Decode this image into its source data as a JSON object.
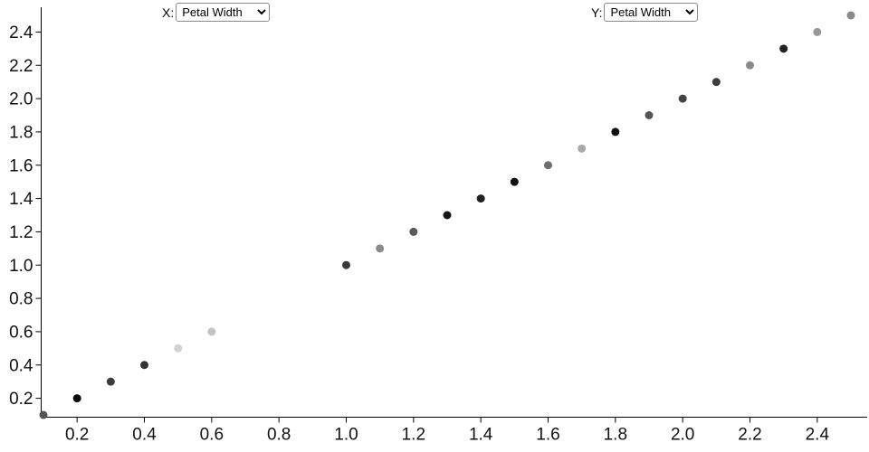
{
  "controls": {
    "x": {
      "label": "X:",
      "value": "Petal Width",
      "options": [
        "Petal Width"
      ]
    },
    "y": {
      "label": "Y:",
      "value": "Petal Width",
      "options": [
        "Petal Width"
      ]
    }
  },
  "chart_data": {
    "type": "scatter",
    "title": "",
    "xlabel": "",
    "ylabel": "",
    "xlim": [
      0.1,
      2.5
    ],
    "ylim": [
      0.1,
      2.5
    ],
    "grid": false,
    "legend": "none",
    "x_ticks": [
      0.2,
      0.4,
      0.6,
      0.8,
      1.0,
      1.2,
      1.4,
      1.6,
      1.8,
      2.0,
      2.2,
      2.4
    ],
    "y_ticks": [
      0.2,
      0.4,
      0.6,
      0.8,
      1.0,
      1.2,
      1.4,
      1.6,
      1.8,
      2.0,
      2.2,
      2.4
    ],
    "tick_format_decimals": 1,
    "axis_color": "#000000",
    "point_radius": 4.5,
    "points": [
      {
        "x": 0.1,
        "y": 0.1,
        "color": "#555555"
      },
      {
        "x": 0.2,
        "y": 0.2,
        "color": "#0a0a0a"
      },
      {
        "x": 0.3,
        "y": 0.3,
        "color": "#3d3d3d"
      },
      {
        "x": 0.4,
        "y": 0.4,
        "color": "#333333"
      },
      {
        "x": 0.5,
        "y": 0.5,
        "color": "#d2d2d2"
      },
      {
        "x": 0.6,
        "y": 0.6,
        "color": "#c4c4c4"
      },
      {
        "x": 1.0,
        "y": 1.0,
        "color": "#3a3a3a"
      },
      {
        "x": 1.1,
        "y": 1.1,
        "color": "#8a8a8a"
      },
      {
        "x": 1.2,
        "y": 1.2,
        "color": "#5a5a5a"
      },
      {
        "x": 1.3,
        "y": 1.3,
        "color": "#151515"
      },
      {
        "x": 1.4,
        "y": 1.4,
        "color": "#222222"
      },
      {
        "x": 1.5,
        "y": 1.5,
        "color": "#111111"
      },
      {
        "x": 1.6,
        "y": 1.6,
        "color": "#6e6e6e"
      },
      {
        "x": 1.7,
        "y": 1.7,
        "color": "#aaaaaa"
      },
      {
        "x": 1.8,
        "y": 1.8,
        "color": "#111111"
      },
      {
        "x": 1.9,
        "y": 1.9,
        "color": "#555555"
      },
      {
        "x": 2.0,
        "y": 2.0,
        "color": "#444444"
      },
      {
        "x": 2.1,
        "y": 2.1,
        "color": "#3c3c3c"
      },
      {
        "x": 2.2,
        "y": 2.2,
        "color": "#8a8a8a"
      },
      {
        "x": 2.3,
        "y": 2.3,
        "color": "#222222"
      },
      {
        "x": 2.4,
        "y": 2.4,
        "color": "#999999"
      },
      {
        "x": 2.5,
        "y": 2.5,
        "color": "#8a8a8a"
      }
    ]
  }
}
